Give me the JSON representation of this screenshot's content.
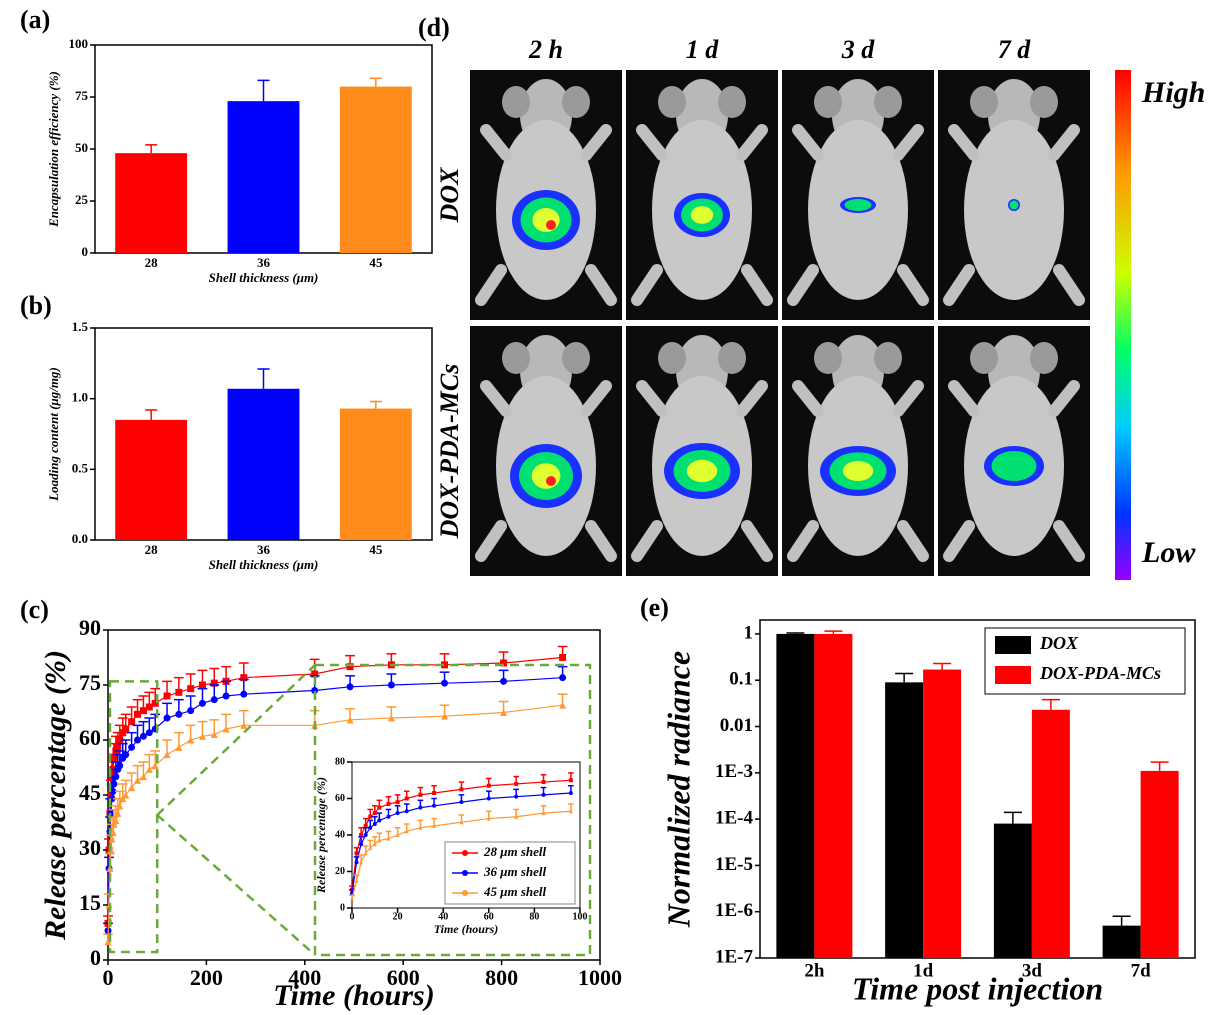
{
  "chart_data": [
    {
      "type": "bar",
      "label": "(a)",
      "xlabel": "Shell thickness (μm)",
      "ylabel": "Encapsulation efficiency (%)",
      "categories": [
        "28",
        "36",
        "45"
      ],
      "values": [
        48,
        73,
        80
      ],
      "errors": [
        4,
        10,
        4
      ],
      "colors": [
        "#ff0000",
        "#0000ff",
        "#ff8c1a"
      ],
      "ylim": [
        0,
        100
      ],
      "yticks": [
        0,
        25,
        50,
        75,
        100
      ]
    },
    {
      "type": "bar",
      "label": "(b)",
      "xlabel": "Shell thickness (μm)",
      "ylabel": "Loading content (μg/mg)",
      "categories": [
        "28",
        "36",
        "45"
      ],
      "values": [
        0.85,
        1.07,
        0.93
      ],
      "errors": [
        0.07,
        0.14,
        0.05
      ],
      "colors": [
        "#ff0000",
        "#0000ff",
        "#ff8c1a"
      ],
      "ylim": [
        0,
        1.5
      ],
      "yticks": [
        {
          "value": 0,
          "label": "0.0"
        },
        0.5,
        {
          "value": 1,
          "label": "1.0"
        },
        1.5
      ]
    },
    {
      "type": "line",
      "label": "(c)",
      "xlabel": "Time (hours)",
      "ylabel": "Release percentage (%)",
      "x": [
        0,
        2,
        4,
        6,
        8,
        10,
        12,
        16,
        20,
        24,
        30,
        36,
        48,
        60,
        72,
        84,
        96,
        120,
        144,
        168,
        192,
        216,
        240,
        276,
        420,
        492,
        576,
        684,
        804,
        924
      ],
      "series": [
        {
          "name": "28 μm shell",
          "color": "#ff0000",
          "marker": "square",
          "values": [
            10,
            30,
            40,
            45,
            50,
            52,
            55,
            57,
            58,
            60,
            62,
            63,
            65,
            67,
            68,
            69,
            70,
            72,
            73,
            74,
            75,
            75.5,
            76,
            77,
            78,
            80,
            80.5,
            80.5,
            81,
            82.5
          ],
          "errors": [
            2,
            3,
            4,
            4,
            4,
            4,
            4,
            4,
            4,
            4,
            4,
            4,
            4,
            4,
            4,
            4,
            4,
            4,
            4,
            4,
            4,
            4,
            4,
            4,
            4,
            3,
            3,
            3,
            3,
            3
          ]
        },
        {
          "name": "36 μm shell",
          "color": "#0000ff",
          "marker": "circle",
          "values": [
            8,
            25,
            35,
            40,
            44,
            46,
            48,
            50,
            52,
            53,
            55,
            56,
            58,
            60,
            61,
            62,
            63,
            66,
            67,
            68,
            70,
            71,
            72,
            72.5,
            73.5,
            74.5,
            75,
            75.5,
            76,
            77
          ],
          "errors": [
            2,
            3,
            4,
            4,
            4,
            4,
            4,
            4,
            4,
            4,
            4,
            4,
            4,
            4,
            4,
            4,
            4,
            4,
            4,
            4,
            4,
            4,
            4,
            4,
            4,
            3,
            3,
            3,
            3,
            3
          ]
        },
        {
          "name": "45 μm shell",
          "color": "#ff9933",
          "marker": "triangle",
          "values": [
            5,
            15,
            25,
            30,
            33,
            35,
            37,
            38,
            40,
            42,
            44,
            45,
            47,
            49,
            50,
            52,
            53,
            56,
            58,
            60,
            61,
            61.5,
            63,
            64,
            64,
            65.5,
            66,
            66.5,
            67.5,
            69.5
          ],
          "errors": [
            2,
            3,
            4,
            4,
            4,
            4,
            4,
            4,
            4,
            4,
            4,
            4,
            4,
            4,
            4,
            4,
            4,
            4,
            4,
            4,
            4,
            4,
            4,
            4,
            4,
            3,
            3,
            3,
            3,
            3
          ]
        }
      ],
      "xlim": [
        0,
        1000
      ],
      "xticks": [
        0,
        200,
        400,
        600,
        800,
        1000
      ],
      "ylim": [
        0,
        90
      ],
      "yticks": [
        0,
        15,
        30,
        45,
        60,
        75,
        90
      ],
      "inset": {
        "xlabel": "Time (hours)",
        "ylabel": "Release percentage (%)",
        "xlim": [
          0,
          100
        ],
        "xticks": [
          0,
          20,
          40,
          60,
          80,
          100
        ],
        "ylim": [
          0,
          80
        ],
        "yticks": [
          0,
          20,
          40,
          60,
          80
        ],
        "legend": "lower right"
      }
    },
    {
      "type": "grouped_bar",
      "label": "(e)",
      "xlabel": "Time post injection",
      "ylabel": "Normalized radiance",
      "log_y": true,
      "legend": "upper right",
      "categories": [
        "2h",
        "1d",
        "3d",
        "7d"
      ],
      "series": [
        {
          "name": "DOX",
          "color": "#000000",
          "values": [
            1,
            0.09,
            8e-05,
            5e-07
          ],
          "errors": [
            0.05,
            0.05,
            6e-05,
            3e-07
          ]
        },
        {
          "name": "DOX-PDA-MCs",
          "color": "#ff0000",
          "values": [
            1,
            0.17,
            0.023,
            0.0011
          ],
          "errors": [
            0.15,
            0.06,
            0.015,
            0.0006
          ]
        }
      ],
      "ylim": [
        1e-07,
        2
      ],
      "yticks": [
        {
          "value": 1e-07,
          "label": "1E-7"
        },
        {
          "value": 1e-06,
          "label": "1E-6"
        },
        {
          "value": 1e-05,
          "label": "1E-5"
        },
        {
          "value": 0.0001,
          "label": "1E-4"
        },
        {
          "value": 0.001,
          "label": "1E-3"
        },
        0.01,
        0.1,
        1
      ]
    }
  ],
  "imaging": {
    "label": "(d)",
    "columns": [
      "2 h",
      "1 d",
      "3 d",
      "7 d"
    ],
    "rows": [
      "DOX",
      "DOX-PDA-MCs"
    ],
    "scale": {
      "high": "High",
      "low": "Low"
    }
  }
}
